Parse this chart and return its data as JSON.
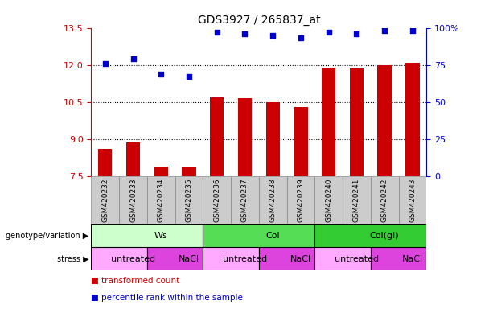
{
  "title": "GDS3927 / 265837_at",
  "samples": [
    "GSM420232",
    "GSM420233",
    "GSM420234",
    "GSM420235",
    "GSM420236",
    "GSM420237",
    "GSM420238",
    "GSM420239",
    "GSM420240",
    "GSM420241",
    "GSM420242",
    "GSM420243"
  ],
  "bar_values": [
    8.6,
    8.85,
    7.9,
    7.85,
    10.7,
    10.65,
    10.5,
    10.3,
    11.9,
    11.85,
    12.0,
    12.1
  ],
  "dot_values": [
    76,
    79,
    69,
    67,
    97,
    96,
    95,
    93,
    97,
    96,
    98,
    98
  ],
  "ylim_left": [
    7.5,
    13.5
  ],
  "ylim_right": [
    0,
    100
  ],
  "yticks_left": [
    7.5,
    9.0,
    10.5,
    12.0,
    13.5
  ],
  "yticks_right": [
    0,
    25,
    50,
    75,
    100
  ],
  "dotted_lines": [
    9.0,
    10.5,
    12.0
  ],
  "bar_color": "#cc0000",
  "dot_color": "#0000cc",
  "bar_bottom": 7.5,
  "genotype_groups": [
    {
      "label": "Ws",
      "start": 0,
      "end": 4,
      "color": "#ccffcc"
    },
    {
      "label": "Col",
      "start": 4,
      "end": 8,
      "color": "#55dd55"
    },
    {
      "label": "Col(gl)",
      "start": 8,
      "end": 12,
      "color": "#33cc33"
    }
  ],
  "stress_groups": [
    {
      "label": "untreated",
      "start": 0,
      "end": 2,
      "color": "#ffaaff"
    },
    {
      "label": "NaCl",
      "start": 2,
      "end": 4,
      "color": "#dd44dd"
    },
    {
      "label": "untreated",
      "start": 4,
      "end": 6,
      "color": "#ffaaff"
    },
    {
      "label": "NaCl",
      "start": 6,
      "end": 8,
      "color": "#dd44dd"
    },
    {
      "label": "untreated",
      "start": 8,
      "end": 10,
      "color": "#ffaaff"
    },
    {
      "label": "NaCl",
      "start": 10,
      "end": 12,
      "color": "#dd44dd"
    }
  ],
  "legend_items": [
    {
      "label": "transformed count",
      "color": "#cc0000"
    },
    {
      "label": "percentile rank within the sample",
      "color": "#0000cc"
    }
  ],
  "left_color": "#cc0000",
  "right_color": "#0000cc",
  "sample_bg": "#cccccc",
  "bg_color": "#ffffff"
}
